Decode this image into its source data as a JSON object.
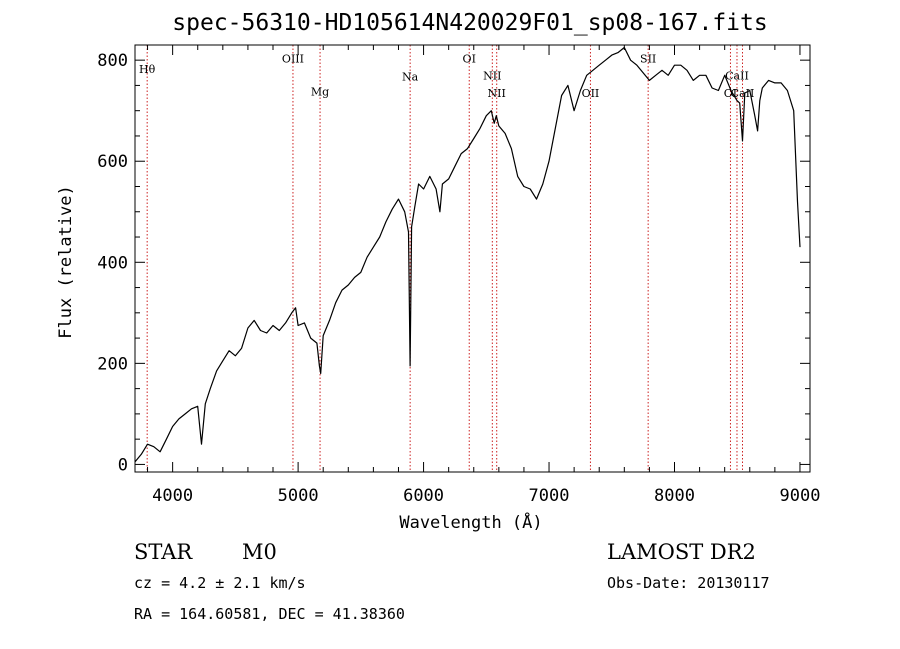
{
  "chart_data": {
    "type": "line",
    "title": "spec-56310-HD105614N420029F01_sp08-167.fits",
    "xlabel": "Wavelength (Å)",
    "ylabel": "Flux (relative)",
    "xlim": [
      3700,
      9080
    ],
    "ylim": [
      -15,
      830
    ],
    "x_ticks": [
      4000,
      5000,
      6000,
      7000,
      8000,
      9000
    ],
    "y_ticks": [
      0,
      200,
      400,
      600,
      800
    ],
    "grid": false,
    "series": [
      {
        "x": [
          3700,
          3750,
          3800,
          3850,
          3900,
          3950,
          4000,
          4050,
          4100,
          4150,
          4200,
          4230,
          4260,
          4300,
          4350,
          4400,
          4450,
          4500,
          4550,
          4600,
          4650,
          4700,
          4750,
          4800,
          4850,
          4900,
          4950,
          4980,
          5000,
          5050,
          5100,
          5150,
          5170,
          5180,
          5200,
          5250,
          5300,
          5350,
          5400,
          5450,
          5500,
          5550,
          5600,
          5650,
          5700,
          5750,
          5800,
          5850,
          5880,
          5893,
          5905,
          5930,
          5960,
          6000,
          6050,
          6100,
          6130,
          6150,
          6200,
          6250,
          6300,
          6350,
          6400,
          6450,
          6500,
          6540,
          6563,
          6580,
          6600,
          6650,
          6700,
          6750,
          6800,
          6850,
          6900,
          6950,
          7000,
          7050,
          7100,
          7150,
          7200,
          7250,
          7300,
          7350,
          7400,
          7450,
          7500,
          7550,
          7600,
          7650,
          7700,
          7750,
          7800,
          7850,
          7900,
          7950,
          8000,
          8050,
          8100,
          8150,
          8200,
          8250,
          8300,
          8350,
          8400,
          8450,
          8498,
          8520,
          8542,
          8560,
          8600,
          8640,
          8662,
          8680,
          8700,
          8750,
          8800,
          8850,
          8900,
          8950,
          8980,
          9000
        ],
        "y": [
          5,
          20,
          40,
          35,
          25,
          50,
          75,
          90,
          100,
          110,
          115,
          40,
          120,
          150,
          185,
          205,
          225,
          215,
          230,
          270,
          285,
          265,
          260,
          275,
          265,
          280,
          300,
          310,
          275,
          280,
          250,
          240,
          195,
          180,
          255,
          285,
          320,
          345,
          355,
          370,
          380,
          410,
          430,
          450,
          480,
          505,
          525,
          500,
          460,
          195,
          470,
          510,
          555,
          545,
          570,
          545,
          500,
          555,
          565,
          590,
          615,
          625,
          645,
          665,
          690,
          700,
          675,
          690,
          670,
          655,
          625,
          570,
          550,
          545,
          525,
          555,
          600,
          665,
          730,
          750,
          700,
          740,
          770,
          780,
          790,
          800,
          810,
          815,
          825,
          800,
          790,
          775,
          760,
          770,
          780,
          770,
          790,
          790,
          780,
          760,
          770,
          770,
          745,
          740,
          770,
          740,
          720,
          715,
          640,
          735,
          740,
          690,
          660,
          720,
          745,
          760,
          755,
          755,
          740,
          700,
          520,
          430
        ]
      }
    ],
    "spectral_lines": [
      {
        "label": "Hθ",
        "x": 3797,
        "label_y": 775
      },
      {
        "label": "OIII",
        "x": 4959,
        "label_y": 795
      },
      {
        "label": "Mg",
        "x": 5175,
        "label_y": 730
      },
      {
        "label": "Na",
        "x": 5893,
        "label_y": 760
      },
      {
        "label": "OI",
        "x": 6364,
        "label_y": 795
      },
      {
        "label": "NII",
        "x": 6548,
        "label_y": 762
      },
      {
        "label": "NII",
        "x": 6583,
        "label_y": 727
      },
      {
        "label": "OII",
        "x": 7330,
        "label_y": 727
      },
      {
        "label": "SII",
        "x": 7790,
        "label_y": 795
      },
      {
        "label": "OI",
        "x": 8446,
        "label_y": 727
      },
      {
        "label": "CaII",
        "x": 8498,
        "label_y": 762
      },
      {
        "label": "CaII",
        "x": 8542,
        "label_y": 727
      }
    ]
  },
  "info": {
    "object_type": "STAR",
    "subclass": "M0",
    "redshift": "cz = 4.2 ± 2.1 km/s",
    "coords": "RA = 164.60581, DEC =  41.38360",
    "survey": "LAMOST DR2",
    "obs_date": "Obs-Date: 20130117"
  },
  "colors": {
    "line_color": "#000000",
    "marker_color": "#cc2222",
    "axis_color": "#000000"
  }
}
